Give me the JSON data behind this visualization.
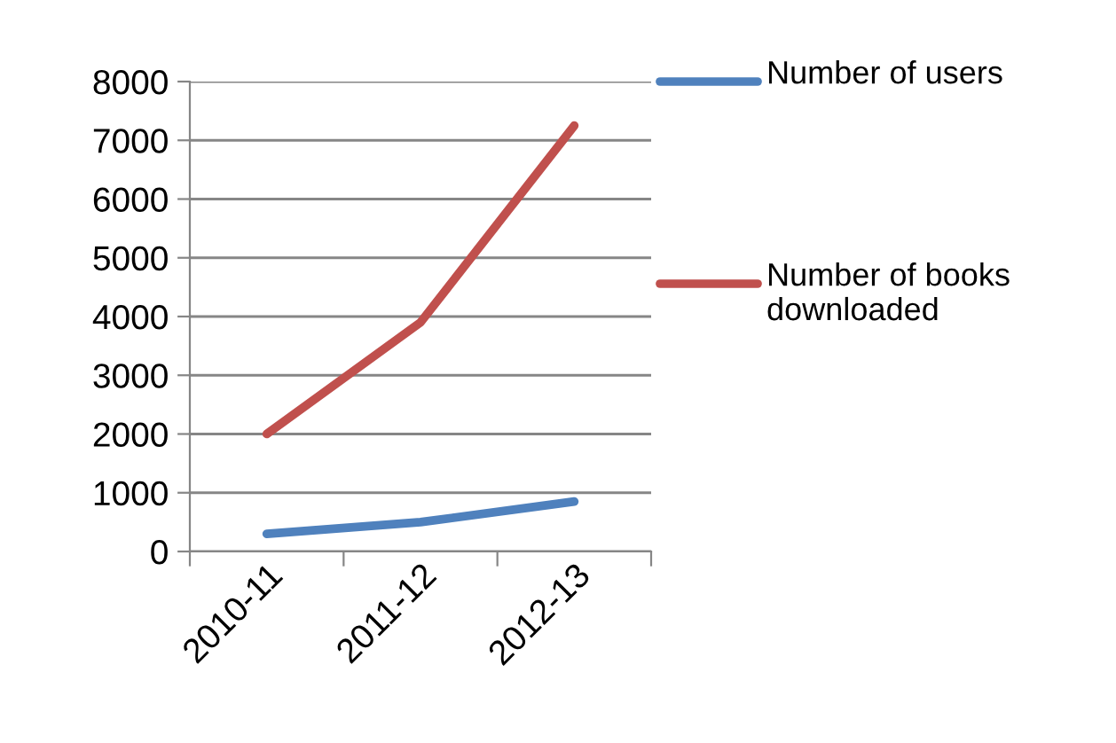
{
  "chart_data": {
    "type": "line",
    "categories": [
      "2010-11",
      "2011-12",
      "2012-13"
    ],
    "series": [
      {
        "name": "Number of users",
        "color": "#4f81bd",
        "values": [
          300,
          500,
          850
        ]
      },
      {
        "name": "Number of books downloaded",
        "color": "#c0504d",
        "values": [
          2000,
          3900,
          7250
        ]
      }
    ],
    "ylim": [
      0,
      8000
    ],
    "yticks": [
      0,
      1000,
      2000,
      3000,
      4000,
      5000,
      6000,
      7000,
      8000
    ],
    "grid": "y",
    "legend": "right",
    "marker": "none",
    "line_style": "solid"
  }
}
